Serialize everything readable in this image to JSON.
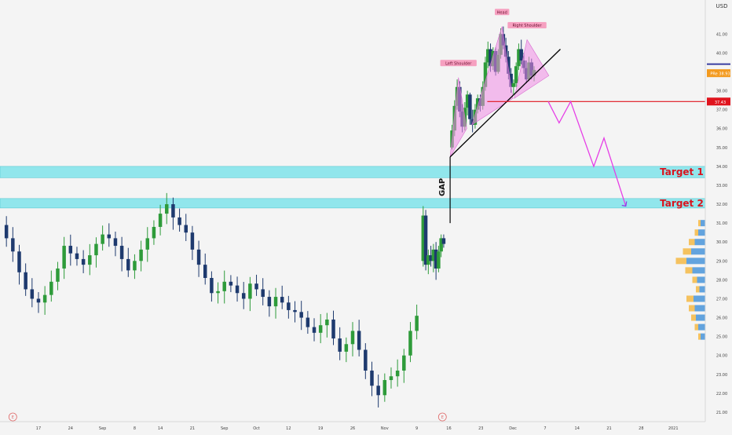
{
  "currency_label": "USD",
  "colors": {
    "background": "#f4f4f4",
    "candle_up": "#2e9b3a",
    "candle_down": "#1e3a6e",
    "pattern_fill": "#f08ce6",
    "target_zone": "#7fe3ea",
    "target_text": "#d9141e",
    "neckline_level": "#e0141e",
    "projection": "#e63ee6",
    "annotation_pink": "#f6a0c0",
    "volume_blue": "#3d8fd8",
    "volume_orange": "#f5b53a"
  },
  "chart_data": {
    "type": "candlestick",
    "ylim": [
      20.5,
      42.8
    ],
    "y_ticks": [
      "41.00",
      "40.00",
      "39.00",
      "38.00",
      "37.00",
      "36.00",
      "35.00",
      "34.00",
      "33.00",
      "32.00",
      "31.00",
      "30.00",
      "29.00",
      "28.00",
      "27.00",
      "26.00",
      "25.00",
      "24.00",
      "23.00",
      "22.00",
      "21.00"
    ],
    "x_tick_labels": [
      "17",
      "24",
      "Sep",
      "8",
      "14",
      "21",
      "Sep",
      "Oct",
      "12",
      "19",
      "26",
      "Nov",
      "9",
      "16",
      "23",
      "Dec",
      "7",
      "14",
      "21",
      "28",
      "2021"
    ],
    "x_tick_values": [
      6,
      11,
      16,
      21,
      25,
      30,
      35,
      40,
      45,
      50,
      55,
      60,
      65,
      70,
      75,
      80,
      85,
      90,
      95,
      100,
      105
    ],
    "close_series": [
      30.9,
      30.2,
      29.5,
      28.4,
      27.5,
      27.0,
      26.8,
      27.2,
      27.9,
      28.6,
      29.8,
      29.4,
      29.1,
      28.8,
      29.3,
      29.9,
      30.4,
      30.2,
      29.8,
      29.1,
      28.5,
      29.0,
      29.6,
      30.2,
      30.8,
      31.5,
      32.0,
      31.3,
      30.9,
      30.5,
      29.6,
      28.8,
      28.1,
      27.3,
      27.4,
      27.9,
      27.7,
      27.3,
      27.0,
      27.8,
      27.5,
      27.1,
      26.6,
      27.1,
      26.8,
      26.4,
      26.3,
      26.0,
      25.5,
      25.2,
      25.6,
      25.9,
      24.9,
      24.2,
      24.6,
      25.3,
      24.3,
      23.2,
      22.4,
      21.9,
      22.7,
      22.9,
      23.2,
      24.0,
      25.3,
      26.1
    ],
    "gap_candles": [
      {
        "x": 66.0,
        "o": 29.0,
        "h": 31.9,
        "l": 28.7,
        "c": 31.4
      },
      {
        "x": 66.4,
        "o": 31.4,
        "h": 31.7,
        "l": 28.5,
        "c": 28.8
      },
      {
        "x": 66.8,
        "o": 28.8,
        "h": 29.6,
        "l": 28.3,
        "c": 29.3
      },
      {
        "x": 67.2,
        "o": 29.3,
        "h": 29.8,
        "l": 28.7,
        "c": 29.0
      },
      {
        "x": 67.6,
        "o": 29.0,
        "h": 29.9,
        "l": 28.4,
        "c": 29.6
      },
      {
        "x": 68.0,
        "o": 29.6,
        "h": 30.0,
        "l": 28.0,
        "c": 28.6
      },
      {
        "x": 68.4,
        "o": 28.6,
        "h": 29.8,
        "l": 28.4,
        "c": 29.5
      },
      {
        "x": 68.8,
        "o": 29.5,
        "h": 30.4,
        "l": 29.2,
        "c": 30.2
      },
      {
        "x": 69.2,
        "o": 30.2,
        "h": 30.4,
        "l": 29.7,
        "c": 29.9
      }
    ],
    "upper_candles": [
      {
        "x": 70.5,
        "o": 35.0,
        "h": 36.2,
        "l": 34.9,
        "c": 35.9
      },
      {
        "x": 70.9,
        "o": 35.9,
        "h": 37.5,
        "l": 35.6,
        "c": 37.2
      },
      {
        "x": 71.3,
        "o": 37.2,
        "h": 38.6,
        "l": 37.0,
        "c": 38.2
      },
      {
        "x": 71.7,
        "o": 38.2,
        "h": 38.5,
        "l": 36.6,
        "c": 36.9
      },
      {
        "x": 72.1,
        "o": 36.9,
        "h": 37.3,
        "l": 35.8,
        "c": 36.1
      },
      {
        "x": 72.5,
        "o": 36.1,
        "h": 37.4,
        "l": 35.9,
        "c": 37.1
      },
      {
        "x": 72.9,
        "o": 37.1,
        "h": 38.0,
        "l": 36.7,
        "c": 37.8
      },
      {
        "x": 73.3,
        "o": 37.8,
        "h": 37.9,
        "l": 36.2,
        "c": 36.5
      },
      {
        "x": 73.7,
        "o": 36.5,
        "h": 37.0,
        "l": 35.8,
        "c": 36.2
      },
      {
        "x": 74.1,
        "o": 36.2,
        "h": 37.3,
        "l": 36.0,
        "c": 37.0
      },
      {
        "x": 74.5,
        "o": 37.0,
        "h": 37.8,
        "l": 36.8,
        "c": 37.6
      },
      {
        "x": 74.9,
        "o": 37.6,
        "h": 37.8,
        "l": 36.9,
        "c": 37.2
      },
      {
        "x": 75.3,
        "o": 37.2,
        "h": 38.5,
        "l": 37.0,
        "c": 38.2
      },
      {
        "x": 75.7,
        "o": 38.2,
        "h": 39.8,
        "l": 38.0,
        "c": 39.5
      },
      {
        "x": 76.1,
        "o": 39.5,
        "h": 40.6,
        "l": 39.2,
        "c": 40.2
      },
      {
        "x": 76.5,
        "o": 40.2,
        "h": 40.5,
        "l": 39.0,
        "c": 39.3
      },
      {
        "x": 76.9,
        "o": 39.3,
        "h": 40.3,
        "l": 39.1,
        "c": 40.1
      },
      {
        "x": 77.3,
        "o": 40.1,
        "h": 40.3,
        "l": 38.8,
        "c": 39.0
      },
      {
        "x": 77.7,
        "o": 39.0,
        "h": 40.2,
        "l": 38.9,
        "c": 39.9
      },
      {
        "x": 78.1,
        "o": 39.9,
        "h": 41.3,
        "l": 39.7,
        "c": 41.0
      },
      {
        "x": 78.5,
        "o": 41.0,
        "h": 41.4,
        "l": 40.2,
        "c": 40.4
      },
      {
        "x": 78.9,
        "o": 40.4,
        "h": 40.8,
        "l": 39.5,
        "c": 39.8
      },
      {
        "x": 79.3,
        "o": 39.8,
        "h": 40.1,
        "l": 38.6,
        "c": 38.9
      },
      {
        "x": 79.7,
        "o": 38.9,
        "h": 39.2,
        "l": 37.9,
        "c": 38.2
      },
      {
        "x": 80.1,
        "o": 38.2,
        "h": 38.6,
        "l": 37.8,
        "c": 38.4
      },
      {
        "x": 80.5,
        "o": 38.4,
        "h": 39.5,
        "l": 38.2,
        "c": 39.3
      },
      {
        "x": 80.9,
        "o": 39.3,
        "h": 40.5,
        "l": 39.1,
        "c": 40.2
      },
      {
        "x": 81.3,
        "o": 40.2,
        "h": 40.7,
        "l": 39.4,
        "c": 39.6
      },
      {
        "x": 81.7,
        "o": 39.6,
        "h": 40.0,
        "l": 38.9,
        "c": 39.2
      },
      {
        "x": 82.1,
        "o": 39.2,
        "h": 39.6,
        "l": 38.4,
        "c": 38.6
      },
      {
        "x": 82.5,
        "o": 38.6,
        "h": 39.8,
        "l": 38.5,
        "c": 39.5
      },
      {
        "x": 82.9,
        "o": 39.5,
        "h": 39.7,
        "l": 38.6,
        "c": 38.8
      },
      {
        "x": 83.3,
        "o": 38.8,
        "h": 39.3,
        "l": 38.5,
        "c": 39.1
      }
    ],
    "target_zones": [
      {
        "label": "Target 1",
        "top": 34.0,
        "bottom": 33.4
      },
      {
        "label": "Target 2",
        "top": 32.3,
        "bottom": 31.8
      }
    ],
    "neckline_level": {
      "value": 37.43,
      "label": "37.43"
    },
    "current_price": {
      "value": 38.93,
      "label": "38.93",
      "tag": "PRe"
    },
    "pattern": {
      "labels": [
        "Left Shoulder",
        "Head",
        "Right Shoulder"
      ],
      "left_shoulder": [
        [
          70.2,
          34.5
        ],
        [
          71.5,
          38.7
        ],
        [
          72.8,
          36.0
        ]
      ],
      "head": [
        [
          73.6,
          36.2
        ],
        [
          78.3,
          41.4
        ],
        [
          80.0,
          37.6
        ]
      ],
      "right_shoulder": [
        [
          80.2,
          37.6
        ],
        [
          82.2,
          40.7
        ],
        [
          85.6,
          38.8
        ]
      ],
      "trendline": [
        [
          70.2,
          34.5
        ],
        [
          87.4,
          40.2
        ]
      ]
    },
    "gap": {
      "label": "GAP",
      "x": 70.2,
      "from": 31.0,
      "to": 34.5
    },
    "projection_path": [
      [
        85.5,
        37.43
      ],
      [
        87.2,
        36.3
      ],
      [
        89.0,
        37.43
      ],
      [
        92.6,
        34.0
      ],
      [
        94.2,
        35.5
      ],
      [
        97.6,
        31.9
      ]
    ],
    "volume_profile": [
      {
        "price": 31.0,
        "blue": 0.2,
        "orange": 0.1
      },
      {
        "price": 30.5,
        "blue": 0.3,
        "orange": 0.15
      },
      {
        "price": 30.0,
        "blue": 0.45,
        "orange": 0.25
      },
      {
        "price": 29.5,
        "blue": 0.6,
        "orange": 0.35
      },
      {
        "price": 29.0,
        "blue": 0.8,
        "orange": 0.45
      },
      {
        "price": 28.5,
        "blue": 0.55,
        "orange": 0.3
      },
      {
        "price": 28.0,
        "blue": 0.35,
        "orange": 0.2
      },
      {
        "price": 27.5,
        "blue": 0.25,
        "orange": 0.15
      },
      {
        "price": 27.0,
        "blue": 0.5,
        "orange": 0.3
      },
      {
        "price": 26.5,
        "blue": 0.45,
        "orange": 0.25
      },
      {
        "price": 26.0,
        "blue": 0.4,
        "orange": 0.2
      },
      {
        "price": 25.5,
        "blue": 0.3,
        "orange": 0.15
      },
      {
        "price": 25.0,
        "blue": 0.2,
        "orange": 0.1
      }
    ]
  }
}
